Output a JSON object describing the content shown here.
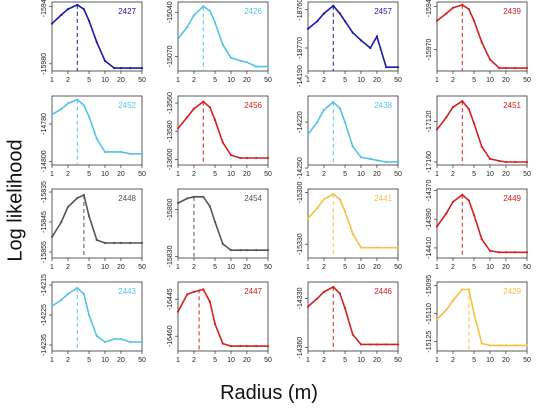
{
  "figure": {
    "ylabel": "Log likelihood",
    "xlabel": "Radius (m)"
  },
  "colors": {
    "dark_blue": "#1a1aa8",
    "light_blue": "#55c3e6",
    "red": "#d42020",
    "grey": "#555555",
    "orange": "#f5c046",
    "axis": "#333333",
    "text": "#222222"
  },
  "chart_data": [
    {
      "type": "line",
      "id": "2427",
      "color_key": "dark_blue",
      "x": [
        1,
        1.5,
        2,
        3,
        4,
        5,
        7,
        10,
        15,
        20,
        30,
        50
      ],
      "y": [
        -15952,
        -15946,
        -15942,
        -15939,
        -15942,
        -15950,
        -15965,
        -15978,
        -15983,
        -15983,
        -15983,
        -15983
      ],
      "peak_x": 3,
      "ylim": [
        -15985,
        -15937
      ],
      "yticks": [
        -15940,
        -15980
      ],
      "x_ticks": [
        "1",
        "2",
        "5",
        "10",
        "20",
        "50"
      ]
    },
    {
      "type": "line",
      "id": "2426",
      "color_key": "light_blue",
      "x": [
        1,
        1.5,
        2,
        3,
        4,
        5,
        7,
        10,
        15,
        20,
        30,
        50
      ],
      "y": [
        -15058,
        -15050,
        -15042,
        -15036,
        -15039,
        -15047,
        -15062,
        -15071,
        -15073,
        -15074,
        -15077,
        -15077
      ],
      "peak_x": 3,
      "ylim": [
        -15080,
        -15033
      ],
      "yticks": [
        -15040,
        -15070
      ],
      "x_ticks": [
        "1",
        "2",
        "5",
        "10",
        "20",
        "50"
      ]
    },
    {
      "type": "line",
      "id": "2457",
      "color_key": "dark_blue",
      "x": [
        1,
        1.5,
        2,
        3,
        4,
        5,
        7,
        10,
        15,
        20,
        30,
        50
      ],
      "y": [
        -18765,
        -18763,
        -18761,
        -18759,
        -18761,
        -18763,
        -18766,
        -18768,
        -18770,
        -18767,
        -18775,
        -18775
      ],
      "peak_x": 3,
      "ylim": [
        -18776,
        -18758
      ],
      "yticks": [
        -18760,
        -18770
      ],
      "x_ticks": [
        "1",
        "2",
        "5",
        "10",
        "20",
        "50"
      ]
    },
    {
      "type": "line",
      "id": "2439",
      "color_key": "red",
      "x": [
        1,
        1.5,
        2,
        3,
        4,
        5,
        7,
        10,
        15,
        20,
        30,
        50
      ],
      "y": [
        -15950,
        -15945,
        -15941,
        -15939,
        -15942,
        -15950,
        -15965,
        -15977,
        -15983,
        -15983,
        -15983,
        -15983
      ],
      "peak_x": 3,
      "ylim": [
        -15985,
        -15937
      ],
      "yticks": [
        -15940,
        -15970
      ],
      "x_ticks": [
        "1",
        "2",
        "5",
        "10",
        "20",
        "50"
      ]
    },
    {
      "type": "line",
      "id": "2452",
      "color_key": "light_blue",
      "x": [
        1,
        1.5,
        2,
        3,
        4,
        5,
        7,
        10,
        15,
        20,
        30,
        50
      ],
      "y": [
        -14775,
        -14772,
        -14769,
        -14767,
        -14770,
        -14776,
        -14788,
        -14795,
        -14795,
        -14795,
        -14796,
        -14796
      ],
      "peak_x": 3,
      "ylim": [
        -14802,
        -14765
      ],
      "yticks": [
        -14780,
        -14800
      ],
      "x_ticks": [
        "1",
        "2",
        "5",
        "10",
        "20",
        "50"
      ]
    },
    {
      "type": "line",
      "id": "2456",
      "color_key": "red",
      "x": [
        1,
        1.5,
        2,
        3,
        4,
        5,
        7,
        10,
        15,
        20,
        30,
        50
      ],
      "y": [
        -13578,
        -13570,
        -13564,
        -13559,
        -13563,
        -13572,
        -13588,
        -13597,
        -13599,
        -13599,
        -13599,
        -13599
      ],
      "peak_x": 3,
      "ylim": [
        -13604,
        -13555
      ],
      "yticks": [
        -13560,
        -13580,
        -13600
      ],
      "x_ticks": [
        "1",
        "2",
        "5",
        "10",
        "20",
        "50"
      ]
    },
    {
      "type": "line",
      "id": "2438",
      "color_key": "light_blue",
      "x": [
        1,
        1.5,
        2,
        3,
        4,
        5,
        7,
        10,
        15,
        20,
        30,
        50
      ],
      "y": [
        -14228,
        -14220,
        -14212,
        -14207,
        -14211,
        -14220,
        -14236,
        -14243,
        -14244,
        -14245,
        -14246,
        -14246
      ],
      "peak_x": 3,
      "ylim": [
        -14248,
        -14203
      ],
      "yticks": [
        -14190,
        -14220,
        -14250
      ],
      "x_ticks": [
        "1",
        "2",
        "5",
        "10",
        "20",
        "50"
      ]
    },
    {
      "type": "line",
      "id": "2451",
      "color_key": "red",
      "x": [
        1,
        1.5,
        2,
        3,
        4,
        5,
        7,
        10,
        15,
        20,
        30,
        50
      ],
      "y": [
        -17128,
        -17116,
        -17106,
        -17100,
        -17108,
        -17122,
        -17145,
        -17157,
        -17159,
        -17160,
        -17160,
        -17160
      ],
      "peak_x": 3,
      "ylim": [
        -17163,
        -17095
      ],
      "yticks": [
        -17120,
        -17160
      ],
      "x_ticks": [
        "1",
        "2",
        "5",
        "10",
        "20",
        "50"
      ]
    },
    {
      "type": "line",
      "id": "2448",
      "color_key": "grey",
      "x": [
        1,
        1.5,
        2,
        3,
        4,
        5,
        7,
        10,
        15,
        20,
        30,
        50
      ],
      "y": [
        -15850,
        -15845,
        -15840,
        -15837,
        -15836,
        -15843,
        -15851,
        -15852,
        -15852,
        -15852,
        -15852,
        -15852
      ],
      "peak_x": 4,
      "ylim": [
        -15857,
        -15834
      ],
      "yticks": [
        -15835,
        -15845,
        -15855
      ],
      "x_ticks": [
        "1",
        "2",
        "5",
        "10",
        "20",
        "50"
      ]
    },
    {
      "type": "line",
      "id": "2454",
      "color_key": "grey",
      "x": [
        1,
        1.5,
        2,
        3,
        4,
        5,
        7,
        10,
        15,
        20,
        30,
        50
      ],
      "y": [
        -15796,
        -15793,
        -15792,
        -15792,
        -15798,
        -15808,
        -15822,
        -15826,
        -15826,
        -15826,
        -15826,
        -15826
      ],
      "peak_x": 2,
      "ylim": [
        -15831,
        -15787
      ],
      "yticks": [
        -15800,
        -15830
      ],
      "x_ticks": [
        "1",
        "2",
        "5",
        "10",
        "20",
        "50"
      ]
    },
    {
      "type": "line",
      "id": "2441",
      "color_key": "orange",
      "x": [
        1,
        1.5,
        2,
        3,
        4,
        5,
        7,
        10,
        15,
        20,
        30,
        50
      ],
      "y": [
        -15315,
        -15309,
        -15304,
        -15301,
        -15304,
        -15311,
        -15324,
        -15332,
        -15332,
        -15332,
        -15332,
        -15332
      ],
      "peak_x": 3,
      "ylim": [
        -15338,
        -15298
      ],
      "yticks": [
        -15300,
        -15330
      ],
      "x_ticks": [
        "1",
        "2",
        "5",
        "10",
        "20",
        "50"
      ]
    },
    {
      "type": "line",
      "id": "2449",
      "color_key": "red",
      "x": [
        1,
        1.5,
        2,
        3,
        4,
        5,
        7,
        10,
        15,
        20,
        30,
        50
      ],
      "y": [
        -14395,
        -14386,
        -14378,
        -14373,
        -14377,
        -14387,
        -14404,
        -14412,
        -14413,
        -14413,
        -14413,
        -14413
      ],
      "peak_x": 3,
      "ylim": [
        -14417,
        -14369
      ],
      "yticks": [
        -14370,
        -14390,
        -14410
      ],
      "x_ticks": [
        "1",
        "2",
        "5",
        "10",
        "20",
        "50"
      ]
    },
    {
      "type": "line",
      "id": "2443",
      "color_key": "light_blue",
      "x": [
        1,
        1.5,
        2,
        3,
        4,
        5,
        7,
        10,
        15,
        20,
        30,
        50
      ],
      "y": [
        -14222,
        -14220,
        -14218,
        -14216,
        -14218,
        -14225,
        -14232,
        -14234,
        -14233,
        -14233,
        -14234,
        -14234
      ],
      "peak_x": 3,
      "ylim": [
        -14237,
        -14214
      ],
      "yticks": [
        -14215,
        -14225,
        -14235
      ],
      "x_ticks": [
        "1",
        "2",
        "5",
        "10",
        "20",
        "50"
      ]
    },
    {
      "type": "line",
      "id": "2447",
      "color_key": "red",
      "x": [
        1,
        1.5,
        2,
        3,
        4,
        5,
        7,
        10,
        15,
        20,
        30,
        50
      ],
      "y": [
        -16450,
        -16443,
        -16442,
        -16441,
        -16446,
        -16455,
        -16463,
        -16464,
        -16464,
        -16464,
        -16464,
        -16464
      ],
      "peak_x": 2.5,
      "ylim": [
        -16466,
        -16438
      ],
      "yticks": [
        -16445,
        -16460
      ],
      "x_ticks": [
        "1",
        "2",
        "5",
        "10",
        "20",
        "50"
      ]
    },
    {
      "type": "line",
      "id": "2446",
      "color_key": "red",
      "x": [
        1,
        1.5,
        2,
        3,
        4,
        5,
        7,
        10,
        15,
        20,
        30,
        50
      ],
      "y": [
        -14335,
        -14330,
        -14326,
        -14323,
        -14327,
        -14336,
        -14352,
        -14358,
        -14358,
        -14358,
        -14358,
        -14358
      ],
      "peak_x": 3,
      "ylim": [
        -14362,
        -14320
      ],
      "yticks": [
        -14330,
        -14360
      ],
      "x_ticks": [
        "1",
        "2",
        "5",
        "10",
        "20",
        "50"
      ]
    },
    {
      "type": "line",
      "id": "2429",
      "color_key": "orange",
      "x": [
        1,
        1.5,
        2,
        3,
        4,
        5,
        7,
        10,
        15,
        20,
        30,
        50
      ],
      "y": [
        -15113,
        -15108,
        -15103,
        -15097,
        -15097,
        -15110,
        -15126,
        -15127,
        -15127,
        -15127,
        -15127,
        -15127
      ],
      "peak_x": 4,
      "ylim": [
        -15130,
        -15093
      ],
      "yticks": [
        -15095,
        -15110,
        -15125
      ],
      "x_ticks": [
        "1",
        "2",
        "5",
        "10",
        "20",
        "50"
      ]
    }
  ]
}
